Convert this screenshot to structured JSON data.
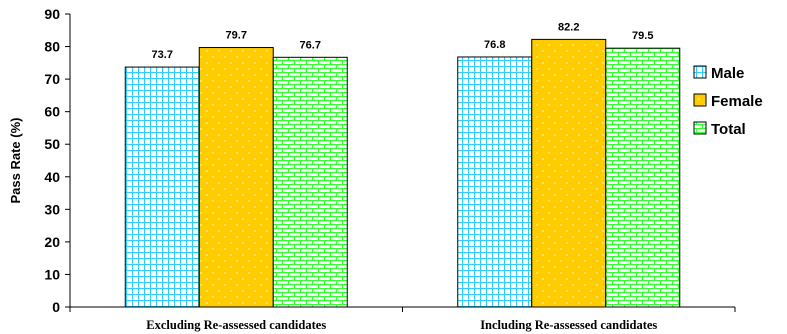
{
  "chart_data": {
    "type": "bar",
    "title": "",
    "xlabel": "",
    "ylabel": "Pass Rate (%)",
    "ylim": [
      0,
      90
    ],
    "yticks": [
      0,
      10,
      20,
      30,
      40,
      50,
      60,
      70,
      80,
      90
    ],
    "grid": false,
    "legend_position": "right",
    "categories": [
      "Excluding Re-assessed candidates",
      "Including Re-assessed candidates"
    ],
    "series": [
      {
        "name": "Male",
        "values": [
          73.7,
          76.8
        ],
        "value_labels": [
          "73.7",
          "76.8"
        ],
        "color": "#33ccff",
        "pattern": "grid"
      },
      {
        "name": "Female",
        "values": [
          79.7,
          82.2
        ],
        "value_labels": [
          "79.7",
          "82.2"
        ],
        "color": "#ffcc00",
        "pattern": "dots"
      },
      {
        "name": "Total",
        "values": [
          76.7,
          79.5
        ],
        "value_labels": [
          "76.7",
          "79.5"
        ],
        "color": "#33ff33",
        "pattern": "brick"
      }
    ]
  }
}
